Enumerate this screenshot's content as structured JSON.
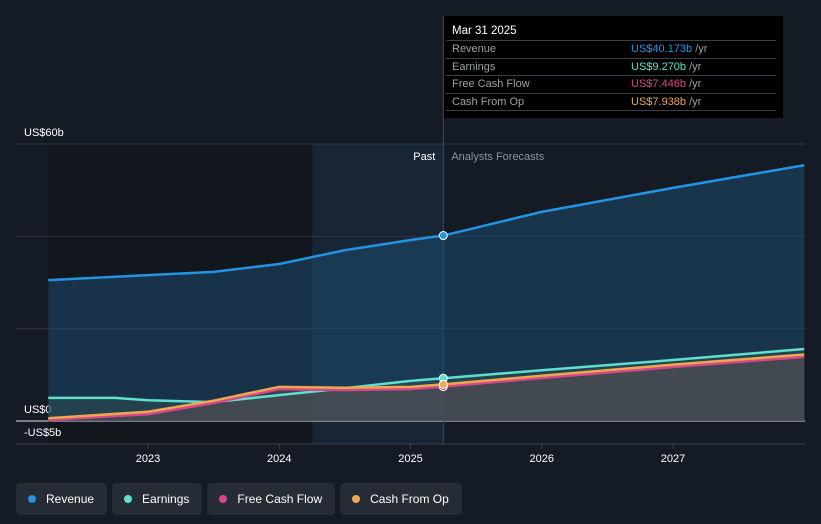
{
  "chart_data": {
    "type": "line",
    "y_ticks": [
      {
        "value": 60,
        "label": "US$60b"
      },
      {
        "value": 0,
        "label": "US$0"
      },
      {
        "value": -5,
        "label": "-US$5b"
      }
    ],
    "x_ticks": [
      2023,
      2024,
      2025,
      2026,
      2027
    ],
    "ylim": [
      -5,
      60
    ],
    "xlim": [
      2022.24,
      2028
    ],
    "past_label": "Past",
    "forecast_label": "Analysts Forecasts",
    "divider_x": 2025.25,
    "shade_start": 2024.25,
    "series": [
      {
        "name": "Revenue",
        "color": "#2394e3",
        "x": [
          2022.24,
          2023,
          2023.5,
          2024,
          2024.5,
          2025,
          2025.25,
          2026,
          2027,
          2028
        ],
        "values": [
          30.5,
          31.6,
          32.3,
          34,
          37,
          39.2,
          40.17,
          45.3,
          50.5,
          55.4
        ]
      },
      {
        "name": "Earnings",
        "color": "#5ee0cc",
        "x": [
          2022.24,
          2022.75,
          2023,
          2023.5,
          2024,
          2024.5,
          2025,
          2025.25,
          2026,
          2027,
          2028
        ],
        "values": [
          5,
          5,
          4.5,
          4.1,
          5.6,
          7.1,
          8.7,
          9.27,
          11,
          13.2,
          15.6
        ]
      },
      {
        "name": "Free Cash Flow",
        "color": "#d6468b",
        "x": [
          2022.24,
          2023,
          2023.5,
          2024,
          2024.5,
          2025,
          2025.25,
          2026,
          2027,
          2028
        ],
        "values": [
          0.2,
          1.5,
          3.9,
          6.9,
          6.7,
          6.9,
          7.45,
          9.3,
          11.7,
          13.9
        ]
      },
      {
        "name": "Cash From Op",
        "color": "#eda84f",
        "x": [
          2022.24,
          2023,
          2023.5,
          2024,
          2024.5,
          2025,
          2025.25,
          2026,
          2027,
          2028
        ],
        "values": [
          0.6,
          2,
          4.4,
          7.4,
          7.2,
          7.4,
          7.94,
          9.8,
          12.2,
          14.4
        ]
      }
    ]
  },
  "tooltip": {
    "date": "Mar 31 2025",
    "rows": [
      {
        "label": "Revenue",
        "value": "US$40.173b",
        "unit": " /yr",
        "color": "#2394e3"
      },
      {
        "label": "Earnings",
        "value": "US$9.270b",
        "unit": " /yr",
        "color": "#5ee0cc"
      },
      {
        "label": "Free Cash Flow",
        "value": "US$7.446b",
        "unit": " /yr",
        "color": "#d6468b"
      },
      {
        "label": "Cash From Op",
        "value": "US$7.938b",
        "unit": " /yr",
        "color": "#eda84f"
      }
    ]
  },
  "legend": [
    {
      "label": "Revenue",
      "color": "#2394e3"
    },
    {
      "label": "Earnings",
      "color": "#5ee0cc"
    },
    {
      "label": "Free Cash Flow",
      "color": "#d6468b"
    },
    {
      "label": "Cash From Op",
      "color": "#eda84f"
    }
  ]
}
